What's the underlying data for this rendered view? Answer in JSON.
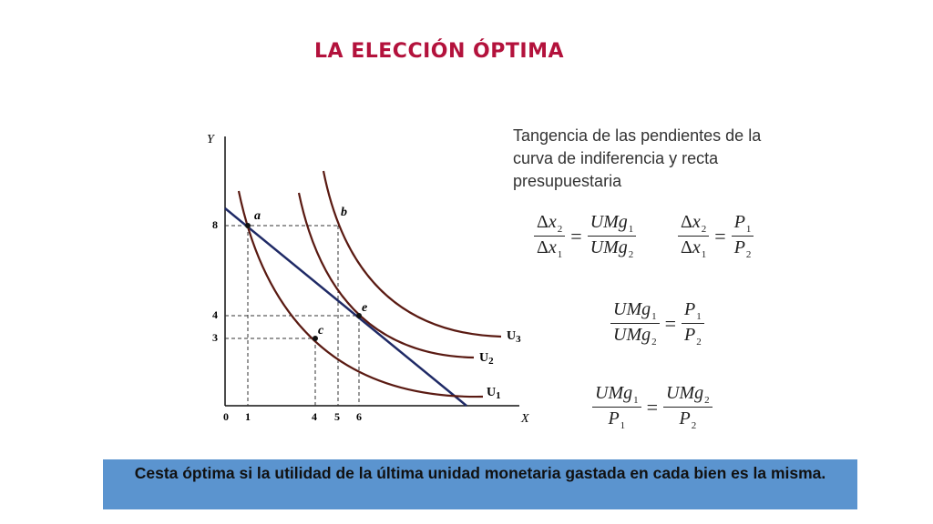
{
  "title": "LA ELECCIÓN ÓPTIMA",
  "graph": {
    "y_axis_label": "Y",
    "x_axis_label": "X",
    "x_ticks": [
      "0",
      "1",
      "4",
      "5",
      "6"
    ],
    "y_ticks": [
      "8",
      "4",
      "3"
    ],
    "points": [
      {
        "label": "a",
        "x": 1,
        "y": 8
      },
      {
        "label": "b",
        "x": 5,
        "y": 8
      },
      {
        "label": "c",
        "x": 4,
        "y": 3
      },
      {
        "label": "e",
        "x": 6,
        "y": 4
      }
    ],
    "curves": [
      {
        "name": "U",
        "sub": "1"
      },
      {
        "name": "U",
        "sub": "2"
      },
      {
        "name": "U",
        "sub": "3"
      }
    ],
    "colors": {
      "curve": "#5a1a12",
      "budget_line": "#1f2a66",
      "guide": "#333333"
    }
  },
  "tangency_text": "Tangencia de las pendientes de la curva de indiferencia y recta presupuestaria",
  "equations": {
    "delta": "Δ",
    "x": "x",
    "umg": "UMg",
    "p": "P",
    "one": "1",
    "two": "2",
    "equals": "="
  },
  "footer": "Cesta óptima si la utilidad de la última unidad monetaria gastada en cada bien es la misma."
}
